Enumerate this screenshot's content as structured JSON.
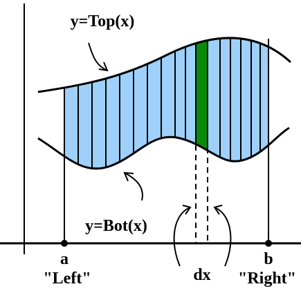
{
  "labels": {
    "top_curve": "y=Top(x)",
    "bottom_curve": "y=Bot(x)",
    "a": "a",
    "left": "\"Left\"",
    "b": "b",
    "right": "\"Right\"",
    "dx": "dx"
  }
}
